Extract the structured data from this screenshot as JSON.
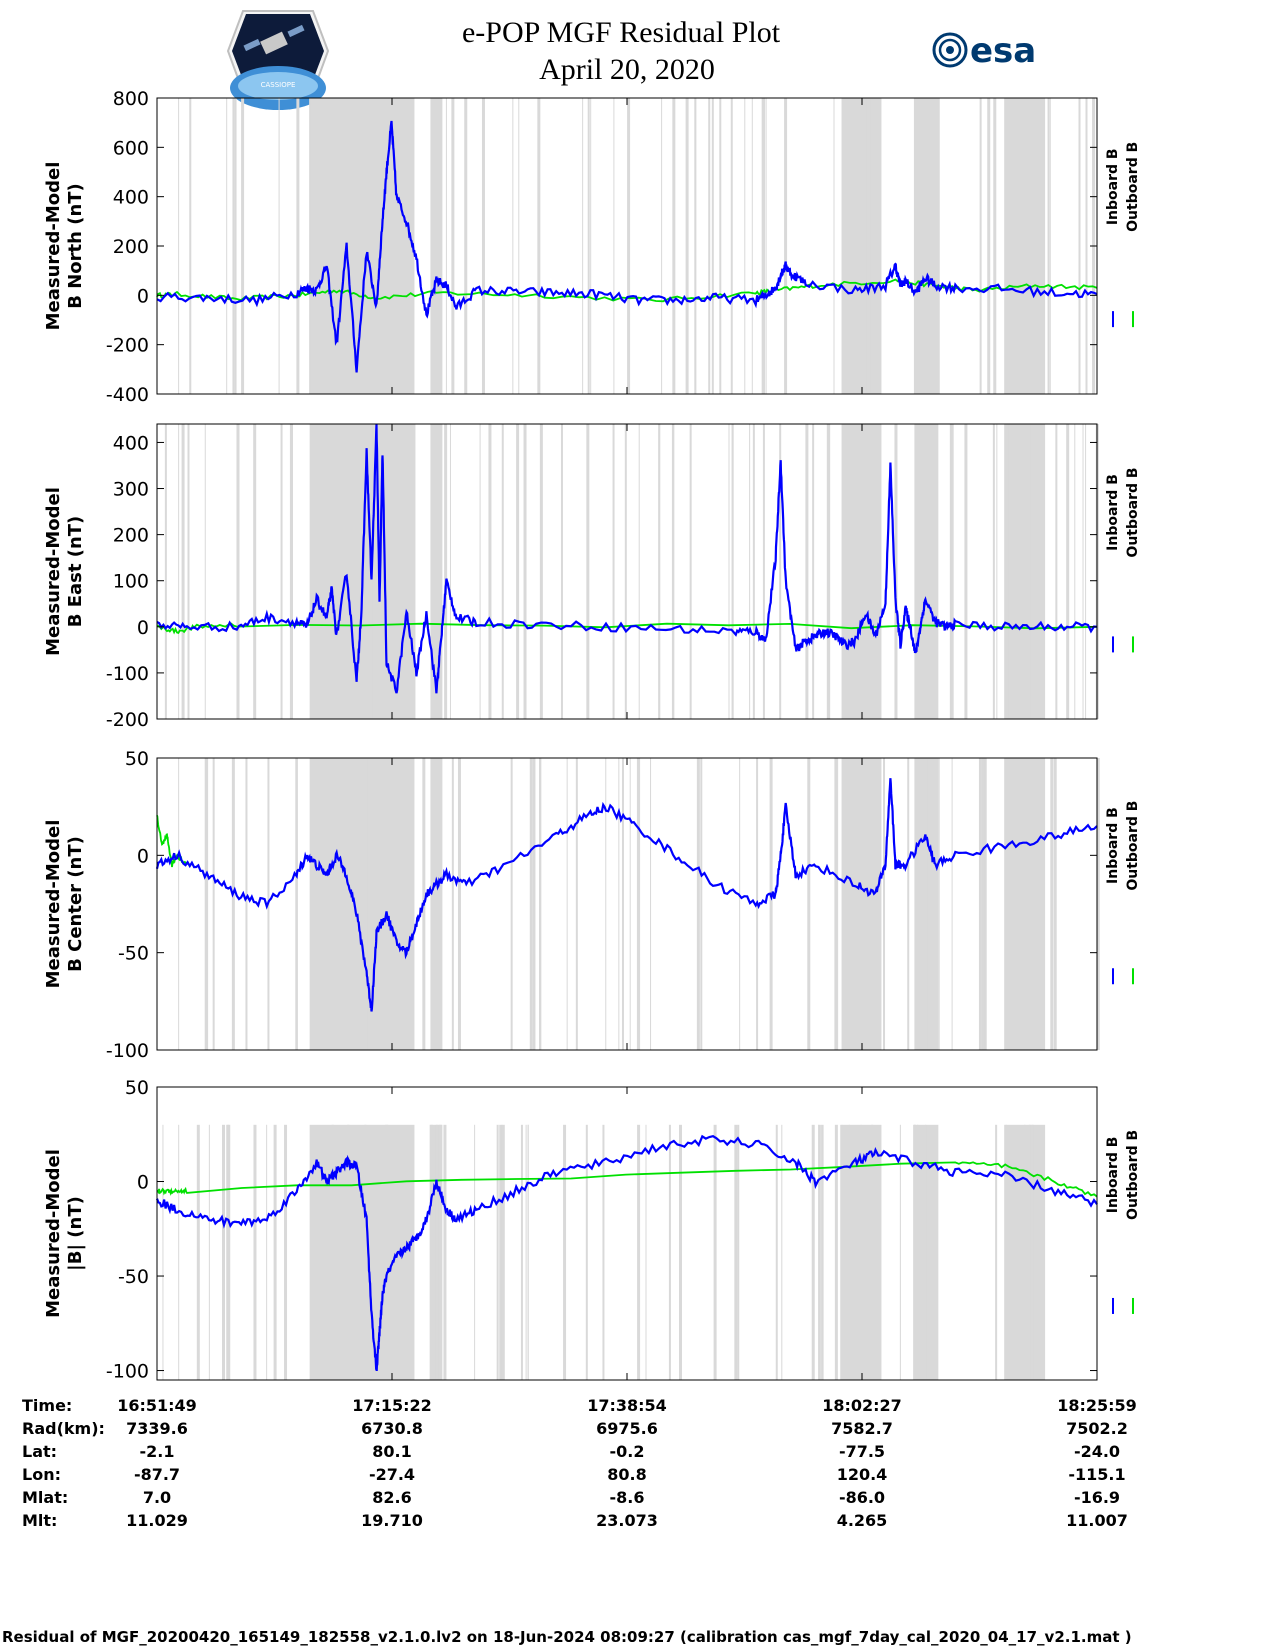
{
  "header": {
    "title_line1": "e-POP MGF Residual Plot",
    "title_line2": "April 20, 2020",
    "esa_logo_text": "esa",
    "cassiope_logo_text": "CASSIOPE"
  },
  "colors": {
    "inboard": "#0000ff",
    "outboard": "#00e000",
    "shade": "#d9d9d9",
    "axis": "#000000"
  },
  "legend": {
    "inboard": "Inboard B",
    "outboard": "Outboard B"
  },
  "footer": "Residual of MGF_20200420_165149_182558_v2.1.0.lv2 on 18-Jun-2024 08:09:27 (calibration cas_mgf_7day_cal_2020_04_17_v2.1.mat )",
  "info_table": {
    "labels": [
      "Time:",
      "Rad(km):",
      "Lat:",
      "Lon:",
      "Mlat:",
      "Mlt:"
    ],
    "columns": [
      [
        "16:51:49",
        "7339.6",
        "-2.1",
        "-87.7",
        "7.0",
        "11.029"
      ],
      [
        "17:15:22",
        "6730.8",
        "80.1",
        "-27.4",
        "82.6",
        "19.710"
      ],
      [
        "17:38:54",
        "6975.6",
        "-0.2",
        "80.8",
        "-8.6",
        "23.073"
      ],
      [
        "18:02:27",
        "7582.7",
        "-77.5",
        "120.4",
        "-86.0",
        "4.265"
      ],
      [
        "18:25:59",
        "7502.2",
        "-24.0",
        "-115.1",
        "-16.9",
        "11.007"
      ]
    ]
  },
  "chart_data": {
    "type": "line",
    "x_unit": "minutes after 16:51:49",
    "xlim": [
      0,
      94.2
    ],
    "x_ticks": [
      0,
      23.55,
      47.1,
      70.65,
      94.2
    ],
    "shaded_intervals": [
      [
        15.3,
        25.8
      ],
      [
        27.4,
        28.6
      ],
      [
        84.9,
        89.0
      ],
      [
        68.6,
        72.6
      ],
      [
        75.9,
        78.3
      ]
    ],
    "panels": [
      {
        "id": "north",
        "ylabel_line1": "Measured-Model",
        "ylabel_line2": "B North (nT)",
        "ylim": [
          -400,
          800
        ],
        "yticks": [
          -400,
          -200,
          0,
          200,
          400,
          600,
          800
        ],
        "ytick_labels": [
          "-400",
          "-200",
          "0",
          "200",
          "400",
          "600",
          "800"
        ],
        "series": [
          {
            "name": "Outboard B",
            "x": [
              0,
              2,
              8,
              14,
              18,
              22,
              28,
              38,
              50,
              60,
              62,
              66,
              74,
              78,
              82,
              88,
              94.2
            ],
            "y": [
              0,
              5,
              -15,
              0,
              20,
              -10,
              10,
              0,
              -20,
              10,
              20,
              40,
              60,
              40,
              20,
              40,
              30
            ]
          },
          {
            "name": "Inboard B",
            "x": [
              0,
              5,
              10,
              14,
              15,
              16,
              17,
              18,
              19,
              20,
              21,
              22,
              22.5,
              23,
              23.5,
              24,
              25,
              26,
              27,
              28,
              29,
              30,
              32,
              36,
              40,
              44,
              48,
              52,
              56,
              60,
              61,
              62,
              62.5,
              63,
              63.5,
              65,
              70,
              73,
              74,
              74.5,
              75,
              76,
              77,
              78,
              80,
              85,
              90,
              94.2
            ],
            "y": [
              -5,
              -10,
              -20,
              10,
              30,
              20,
              120,
              -200,
              200,
              -300,
              180,
              -50,
              250,
              500,
              700,
              400,
              300,
              150,
              -80,
              60,
              40,
              -50,
              20,
              15,
              10,
              5,
              -20,
              -20,
              -10,
              -20,
              0,
              30,
              80,
              120,
              90,
              50,
              20,
              40,
              120,
              40,
              60,
              10,
              70,
              40,
              30,
              25,
              10,
              5
            ]
          }
        ]
      },
      {
        "id": "east",
        "ylabel_line1": "Measured-Model",
        "ylabel_line2": "B East (nT)",
        "ylim": [
          -200,
          440
        ],
        "yticks": [
          -200,
          -100,
          0,
          100,
          200,
          300,
          400
        ],
        "ytick_labels": [
          "-200",
          "-100",
          "0",
          "100",
          "200",
          "300",
          "400"
        ],
        "series": [
          {
            "name": "Outboard B",
            "x": [
              0,
              2,
              4,
              8,
              94.2
            ],
            "y": [
              0,
              -10,
              0,
              5,
              0
            ]
          },
          {
            "name": "Inboard B",
            "x": [
              0,
              3,
              8,
              11,
              14,
              15,
              16,
              17,
              17.5,
              18,
              19,
              20,
              20.5,
              21,
              21.5,
              22,
              22.3,
              22.6,
              23,
              24,
              25,
              26,
              27,
              28,
              28.5,
              29,
              30,
              32,
              38,
              45,
              52,
              58,
              60,
              61,
              62,
              62.5,
              63,
              64,
              65,
              66,
              67,
              68,
              69,
              70,
              71,
              72,
              73,
              73.5,
              74,
              74.5,
              75,
              75.5,
              76,
              76.5,
              77,
              78,
              79,
              80,
              85,
              90,
              94.2
            ],
            "y": [
              5,
              0,
              0,
              20,
              10,
              0,
              60,
              20,
              80,
              -20,
              120,
              -120,
              40,
              380,
              100,
              440,
              50,
              380,
              -80,
              -140,
              30,
              -100,
              30,
              -140,
              -20,
              100,
              20,
              10,
              5,
              0,
              -5,
              -10,
              -10,
              -30,
              150,
              360,
              100,
              -50,
              -30,
              -20,
              -10,
              -20,
              -40,
              -30,
              30,
              -20,
              50,
              350,
              60,
              -40,
              40,
              0,
              -60,
              0,
              60,
              10,
              0,
              5,
              0,
              0,
              0
            ]
          }
        ]
      },
      {
        "id": "center",
        "ylabel_line1": "Measured-Model",
        "ylabel_line2": "B Center (nT)",
        "ylim": [
          -100,
          50
        ],
        "yticks": [
          -100,
          -50,
          0,
          50
        ],
        "ytick_labels": [
          "-100",
          "-50",
          "0",
          "50"
        ],
        "series": [
          {
            "name": "Outboard B",
            "x": [
              0,
              0.5,
              1,
              1.5,
              2,
              3
            ],
            "y": [
              20,
              5,
              10,
              -5,
              0,
              -5
            ]
          },
          {
            "name": "Inboard B",
            "x": [
              0,
              2,
              5,
              8,
              11,
              14,
              15,
              16,
              17,
              18,
              19,
              20,
              21,
              21.5,
              22,
              23,
              24,
              25,
              26,
              27,
              28,
              29,
              31,
              35,
              40,
              43,
              45,
              48,
              52,
              56,
              60,
              62,
              62.5,
              63,
              64,
              66,
              70,
              72,
              73,
              73.5,
              74,
              75,
              77,
              78,
              80,
              85,
              90,
              94.2
            ],
            "y": [
              -5,
              0,
              -10,
              -20,
              -25,
              -10,
              0,
              -5,
              -10,
              0,
              -10,
              -30,
              -60,
              -80,
              -40,
              -30,
              -45,
              -50,
              -35,
              -20,
              -15,
              -10,
              -15,
              -5,
              10,
              20,
              25,
              15,
              0,
              -15,
              -25,
              -20,
              0,
              25,
              -10,
              -5,
              -15,
              -20,
              -5,
              40,
              -5,
              -5,
              10,
              -5,
              0,
              5,
              10,
              15
            ]
          }
        ]
      },
      {
        "id": "mag",
        "ylabel_line1": "Measured-Model",
        "ylabel_line2": "|B| (nT)",
        "ylim": [
          -105,
          50
        ],
        "yticks": [
          -100,
          -50,
          0,
          50
        ],
        "ytick_labels": [
          "-100",
          "-50",
          "0",
          "50"
        ],
        "series": [
          {
            "name": "Outboard B",
            "x": [
              0,
              1,
              2,
              3,
              80,
              85,
              90,
              94.2
            ],
            "y": [
              -5,
              -5,
              -5,
              -5,
              10,
              8,
              0,
              -8
            ]
          },
          {
            "name": "Inboard B",
            "x": [
              0,
              2,
              5,
              8,
              11,
              14,
              16,
              17,
              18,
              19,
              20,
              21,
              21.5,
              22,
              22.3,
              22.6,
              23,
              24,
              25,
              26,
              27,
              28,
              29,
              30,
              32,
              36,
              40,
              45,
              50,
              55,
              60,
              64,
              66,
              70,
              72,
              76,
              80,
              85,
              90,
              94.2
            ],
            "y": [
              -10,
              -15,
              -20,
              -22,
              -20,
              -5,
              10,
              0,
              5,
              10,
              8,
              -20,
              -70,
              -100,
              -80,
              -60,
              -50,
              -40,
              -35,
              -30,
              -20,
              0,
              -15,
              -20,
              -15,
              -5,
              5,
              10,
              18,
              22,
              20,
              10,
              0,
              10,
              15,
              10,
              5,
              3,
              -5,
              -12
            ]
          }
        ]
      }
    ]
  }
}
